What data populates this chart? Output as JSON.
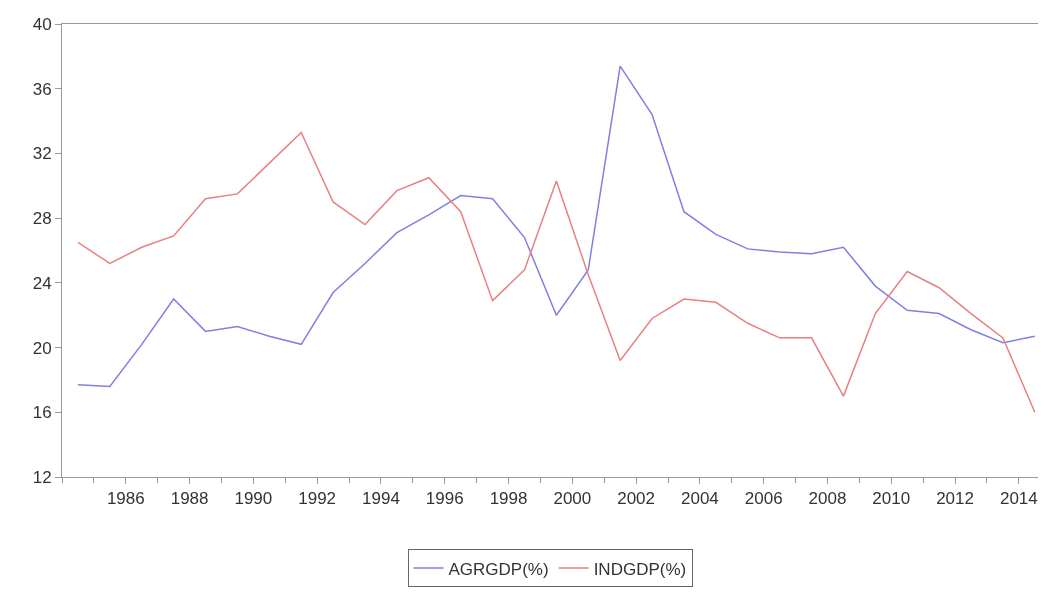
{
  "chart_data": {
    "type": "line",
    "x": [
      1984.5,
      1985.5,
      1986.5,
      1987.5,
      1988.5,
      1989.5,
      1990.5,
      1991.5,
      1992.5,
      1993.5,
      1994.5,
      1995.5,
      1996.5,
      1997.5,
      1998.5,
      1999.5,
      2000.5,
      2001.5,
      2002.5,
      2003.5,
      2004.5,
      2005.5,
      2006.5,
      2007.5,
      2008.5,
      2009.5,
      2010.5,
      2011.5,
      2012.5,
      2013.5,
      2014.5
    ],
    "series": [
      {
        "name": "AGRGDP(%)",
        "color": "#8080e0",
        "values": [
          17.7,
          17.6,
          20.2,
          23.0,
          21.0,
          21.3,
          20.7,
          20.2,
          23.4,
          25.2,
          27.1,
          28.2,
          29.4,
          29.2,
          26.8,
          22.0,
          24.8,
          37.4,
          34.4,
          28.4,
          27.0,
          26.1,
          25.9,
          25.8,
          26.2,
          23.8,
          22.3,
          22.1,
          21.1,
          20.3,
          20.7
        ]
      },
      {
        "name": "INDGDP(%)",
        "color": "#e88080",
        "values": [
          26.5,
          25.2,
          26.2,
          26.9,
          29.2,
          29.5,
          31.4,
          33.3,
          29.0,
          27.6,
          29.7,
          30.5,
          28.4,
          22.9,
          24.8,
          30.3,
          24.5,
          19.2,
          21.8,
          23.0,
          22.8,
          21.5,
          20.6,
          20.6,
          17.0,
          22.1,
          24.7,
          23.7,
          22.1,
          20.6,
          16.0
        ]
      }
    ],
    "xlim": [
      1984,
      2014.6
    ],
    "xticks": [
      1986,
      1988,
      1990,
      1992,
      1994,
      1996,
      1998,
      2000,
      2002,
      2004,
      2006,
      2008,
      2010,
      2012,
      2014
    ],
    "ylim": [
      12,
      40
    ],
    "yticks": [
      12,
      16,
      20,
      24,
      28,
      32,
      36,
      40
    ],
    "legend": "bottom",
    "marker": "none",
    "line_style": "solid"
  }
}
